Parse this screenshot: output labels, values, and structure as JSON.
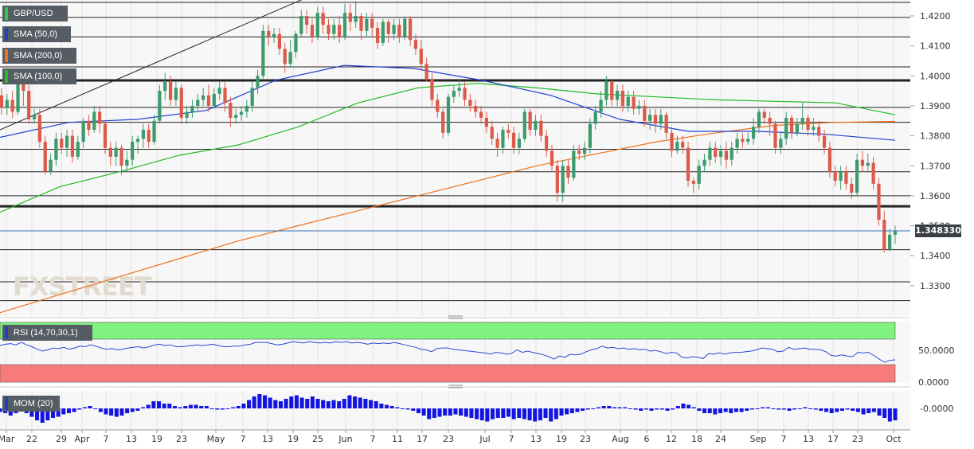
{
  "instrument": "GBP/USD",
  "indicators": {
    "sma50": {
      "label": "SMA (50,0)",
      "color": "#1f3fd0"
    },
    "sma200": {
      "label": "SMA (200,0)",
      "color": "#f0711b"
    },
    "sma100": {
      "label": "SMA (100,0)",
      "color": "#22bb22"
    },
    "rsi": {
      "label": "RSI (14,70,30,1)",
      "overbought": 70,
      "oversold": 30,
      "ticks": [
        "50.0000",
        "0.0000"
      ]
    },
    "mom": {
      "label": "MOM (20)",
      "tick": "-0.0000"
    }
  },
  "watermark": "FXSTREET",
  "last_price": "1.348330",
  "chart_data": {
    "type": "candlestick",
    "ylim": [
      1.32,
      1.425
    ],
    "y_ticks": [
      "1.3300",
      "1.3400",
      "1.3500",
      "1.3600",
      "1.3700",
      "1.3800",
      "1.3900",
      "1.4000",
      "1.4100",
      "1.4200"
    ],
    "x_labels": [
      "Mar",
      "22",
      "29",
      "Apr",
      "7",
      "13",
      "19",
      "23",
      "May",
      "7",
      "13",
      "19",
      "25",
      "Jun",
      "7",
      "11",
      "17",
      "23",
      "Jul",
      "7",
      "13",
      "19",
      "23",
      "Aug",
      "6",
      "12",
      "18",
      "24",
      "Sep",
      "7",
      "13",
      "17",
      "23",
      "Oct"
    ],
    "horizontal_levels": [
      1.4245,
      1.4195,
      1.413,
      1.403,
      1.3985,
      1.3895,
      1.3845,
      1.3755,
      1.368,
      1.36,
      1.3565,
      1.342,
      1.3313,
      1.325
    ],
    "bold_levels": [
      1.3985,
      1.3565
    ],
    "trendline": {
      "from": 1.382,
      "to": 1.426
    },
    "sma200": [
      1.321,
      1.327,
      1.333,
      1.339,
      1.345,
      1.35,
      1.355,
      1.36,
      1.365,
      1.37,
      1.374,
      1.378,
      1.381,
      1.3835,
      1.3845,
      1.3848
    ],
    "sma100": [
      1.3545,
      1.363,
      1.368,
      1.3735,
      1.377,
      1.383,
      1.391,
      1.396,
      1.3975,
      1.396,
      1.394,
      1.393,
      1.392,
      1.3915,
      1.391,
      1.387
    ],
    "sma50": [
      1.3795,
      1.3845,
      1.3855,
      1.3885,
      1.3985,
      1.4035,
      1.4025,
      1.3985,
      1.3935,
      1.3855,
      1.3815,
      1.3815,
      1.3805,
      1.3785
    ],
    "candles": [
      [
        1.3935,
        1.3895,
        1.396,
        1.387
      ],
      [
        1.3895,
        1.392,
        1.394,
        1.387
      ],
      [
        1.392,
        1.388,
        1.395,
        1.386
      ],
      [
        1.388,
        1.399,
        1.401,
        1.387
      ],
      [
        1.399,
        1.395,
        1.401,
        1.39
      ],
      [
        1.395,
        1.3855,
        1.397,
        1.384
      ],
      [
        1.3855,
        1.387,
        1.389,
        1.384
      ],
      [
        1.387,
        1.378,
        1.389,
        1.376
      ],
      [
        1.378,
        1.368,
        1.38,
        1.367
      ],
      [
        1.368,
        1.372,
        1.374,
        1.367
      ],
      [
        1.372,
        1.379,
        1.381,
        1.37
      ],
      [
        1.379,
        1.376,
        1.381,
        1.374
      ],
      [
        1.376,
        1.38,
        1.382,
        1.373
      ],
      [
        1.38,
        1.373,
        1.382,
        1.371
      ],
      [
        1.373,
        1.378,
        1.38,
        1.372
      ],
      [
        1.378,
        1.385,
        1.386,
        1.376
      ],
      [
        1.385,
        1.382,
        1.387,
        1.38
      ],
      [
        1.382,
        1.388,
        1.39,
        1.381
      ],
      [
        1.388,
        1.384,
        1.39,
        1.381
      ],
      [
        1.384,
        1.376,
        1.385,
        1.374
      ],
      [
        1.376,
        1.373,
        1.378,
        1.37
      ],
      [
        1.373,
        1.376,
        1.378,
        1.37
      ],
      [
        1.376,
        1.37,
        1.377,
        1.367
      ],
      [
        1.37,
        1.372,
        1.375,
        1.368
      ],
      [
        1.372,
        1.378,
        1.38,
        1.37
      ],
      [
        1.378,
        1.379,
        1.38,
        1.374
      ],
      [
        1.379,
        1.382,
        1.384,
        1.376
      ],
      [
        1.382,
        1.378,
        1.384,
        1.376
      ],
      [
        1.378,
        1.385,
        1.387,
        1.377
      ],
      [
        1.385,
        1.395,
        1.397,
        1.384
      ],
      [
        1.395,
        1.398,
        1.401,
        1.392
      ],
      [
        1.398,
        1.392,
        1.4,
        1.39
      ],
      [
        1.392,
        1.396,
        1.398,
        1.39
      ],
      [
        1.396,
        1.386,
        1.397,
        1.384
      ],
      [
        1.386,
        1.388,
        1.39,
        1.384
      ],
      [
        1.388,
        1.39,
        1.392,
        1.386
      ],
      [
        1.39,
        1.392,
        1.394,
        1.388
      ],
      [
        1.392,
        1.3935,
        1.396,
        1.39
      ],
      [
        1.3935,
        1.39,
        1.397,
        1.388
      ],
      [
        1.39,
        1.394,
        1.396,
        1.389
      ],
      [
        1.394,
        1.396,
        1.398,
        1.392
      ],
      [
        1.396,
        1.391,
        1.398,
        1.388
      ],
      [
        1.391,
        1.386,
        1.393,
        1.383
      ],
      [
        1.386,
        1.387,
        1.389,
        1.384
      ],
      [
        1.387,
        1.388,
        1.39,
        1.385
      ],
      [
        1.388,
        1.39,
        1.392,
        1.386
      ],
      [
        1.39,
        1.396,
        1.398,
        1.388
      ],
      [
        1.396,
        1.4,
        1.402,
        1.394
      ],
      [
        1.4,
        1.415,
        1.417,
        1.399
      ],
      [
        1.415,
        1.413,
        1.417,
        1.41
      ],
      [
        1.413,
        1.414,
        1.416,
        1.411
      ],
      [
        1.414,
        1.409,
        1.416,
        1.407
      ],
      [
        1.409,
        1.404,
        1.411,
        1.401
      ],
      [
        1.404,
        1.408,
        1.412,
        1.403
      ],
      [
        1.408,
        1.414,
        1.415,
        1.406
      ],
      [
        1.414,
        1.42,
        1.422,
        1.413
      ],
      [
        1.42,
        1.417,
        1.422,
        1.414
      ],
      [
        1.417,
        1.413,
        1.419,
        1.411
      ],
      [
        1.413,
        1.421,
        1.423,
        1.412
      ],
      [
        1.421,
        1.417,
        1.423,
        1.414
      ],
      [
        1.417,
        1.414,
        1.419,
        1.412
      ],
      [
        1.414,
        1.417,
        1.419,
        1.412
      ],
      [
        1.417,
        1.413,
        1.42,
        1.411
      ],
      [
        1.413,
        1.421,
        1.424,
        1.412
      ],
      [
        1.421,
        1.418,
        1.424,
        1.415
      ],
      [
        1.418,
        1.42,
        1.425,
        1.416
      ],
      [
        1.42,
        1.415,
        1.421,
        1.412
      ],
      [
        1.415,
        1.419,
        1.421,
        1.413
      ],
      [
        1.419,
        1.416,
        1.421,
        1.413
      ],
      [
        1.416,
        1.411,
        1.418,
        1.409
      ],
      [
        1.411,
        1.418,
        1.419,
        1.41
      ],
      [
        1.418,
        1.414,
        1.419,
        1.411
      ],
      [
        1.414,
        1.417,
        1.419,
        1.412
      ],
      [
        1.417,
        1.413,
        1.419,
        1.411
      ],
      [
        1.413,
        1.419,
        1.42,
        1.412
      ],
      [
        1.419,
        1.412,
        1.42,
        1.41
      ],
      [
        1.412,
        1.409,
        1.414,
        1.407
      ],
      [
        1.409,
        1.404,
        1.412,
        1.402
      ],
      [
        1.404,
        1.399,
        1.406,
        1.398
      ],
      [
        1.399,
        1.392,
        1.401,
        1.39
      ],
      [
        1.392,
        1.388,
        1.394,
        1.386
      ],
      [
        1.388,
        1.381,
        1.389,
        1.379
      ],
      [
        1.381,
        1.393,
        1.394,
        1.38
      ],
      [
        1.393,
        1.395,
        1.397,
        1.391
      ],
      [
        1.395,
        1.396,
        1.399,
        1.393
      ],
      [
        1.396,
        1.392,
        1.398,
        1.39
      ],
      [
        1.392,
        1.39,
        1.394,
        1.388
      ],
      [
        1.39,
        1.388,
        1.392,
        1.386
      ],
      [
        1.388,
        1.386,
        1.39,
        1.384
      ],
      [
        1.386,
        1.383,
        1.388,
        1.381
      ],
      [
        1.383,
        1.379,
        1.385,
        1.377
      ],
      [
        1.379,
        1.376,
        1.381,
        1.373
      ],
      [
        1.376,
        1.382,
        1.383,
        1.374
      ],
      [
        1.382,
        1.381,
        1.384,
        1.379
      ],
      [
        1.381,
        1.376,
        1.383,
        1.374
      ],
      [
        1.376,
        1.379,
        1.381,
        1.374
      ],
      [
        1.379,
        1.388,
        1.389,
        1.378
      ],
      [
        1.388,
        1.382,
        1.389,
        1.38
      ],
      [
        1.382,
        1.385,
        1.387,
        1.38
      ],
      [
        1.385,
        1.38,
        1.387,
        1.378
      ],
      [
        1.38,
        1.375,
        1.382,
        1.373
      ],
      [
        1.375,
        1.37,
        1.377,
        1.368
      ],
      [
        1.37,
        1.361,
        1.372,
        1.358
      ],
      [
        1.361,
        1.37,
        1.372,
        1.358
      ],
      [
        1.37,
        1.366,
        1.372,
        1.364
      ],
      [
        1.366,
        1.375,
        1.377,
        1.365
      ],
      [
        1.375,
        1.374,
        1.377,
        1.372
      ],
      [
        1.374,
        1.376,
        1.378,
        1.372
      ],
      [
        1.376,
        1.384,
        1.386,
        1.374
      ],
      [
        1.384,
        1.388,
        1.39,
        1.382
      ],
      [
        1.388,
        1.392,
        1.395,
        1.386
      ],
      [
        1.392,
        1.398,
        1.4,
        1.39
      ],
      [
        1.398,
        1.392,
        1.399,
        1.39
      ],
      [
        1.392,
        1.395,
        1.397,
        1.39
      ],
      [
        1.395,
        1.39,
        1.397,
        1.388
      ],
      [
        1.39,
        1.393,
        1.395,
        1.388
      ],
      [
        1.393,
        1.389,
        1.395,
        1.387
      ],
      [
        1.389,
        1.39,
        1.392,
        1.387
      ],
      [
        1.39,
        1.385,
        1.392,
        1.383
      ],
      [
        1.385,
        1.387,
        1.389,
        1.382
      ],
      [
        1.387,
        1.384,
        1.389,
        1.381
      ],
      [
        1.384,
        1.387,
        1.389,
        1.382
      ],
      [
        1.387,
        1.381,
        1.388,
        1.379
      ],
      [
        1.381,
        1.375,
        1.383,
        1.373
      ],
      [
        1.375,
        1.378,
        1.38,
        1.374
      ],
      [
        1.378,
        1.376,
        1.38,
        1.374
      ],
      [
        1.376,
        1.365,
        1.378,
        1.363
      ],
      [
        1.365,
        1.364,
        1.366,
        1.361
      ],
      [
        1.364,
        1.37,
        1.372,
        1.362
      ],
      [
        1.37,
        1.372,
        1.374,
        1.368
      ],
      [
        1.372,
        1.376,
        1.378,
        1.37
      ],
      [
        1.376,
        1.373,
        1.378,
        1.371
      ],
      [
        1.373,
        1.375,
        1.377,
        1.37
      ],
      [
        1.375,
        1.372,
        1.378,
        1.369
      ],
      [
        1.372,
        1.376,
        1.378,
        1.37
      ],
      [
        1.376,
        1.379,
        1.381,
        1.374
      ],
      [
        1.379,
        1.378,
        1.381,
        1.376
      ],
      [
        1.378,
        1.379,
        1.381,
        1.377
      ],
      [
        1.379,
        1.383,
        1.386,
        1.377
      ],
      [
        1.383,
        1.388,
        1.389,
        1.381
      ],
      [
        1.388,
        1.386,
        1.389,
        1.384
      ],
      [
        1.386,
        1.384,
        1.388,
        1.38
      ],
      [
        1.384,
        1.376,
        1.385,
        1.374
      ],
      [
        1.376,
        1.379,
        1.381,
        1.374
      ],
      [
        1.379,
        1.386,
        1.388,
        1.377
      ],
      [
        1.386,
        1.381,
        1.387,
        1.379
      ],
      [
        1.381,
        1.384,
        1.386,
        1.38
      ],
      [
        1.384,
        1.386,
        1.391,
        1.382
      ],
      [
        1.386,
        1.382,
        1.387,
        1.38
      ],
      [
        1.382,
        1.383,
        1.386,
        1.38
      ],
      [
        1.383,
        1.38,
        1.385,
        1.378
      ],
      [
        1.38,
        1.376,
        1.382,
        1.374
      ],
      [
        1.376,
        1.368,
        1.378,
        1.366
      ],
      [
        1.368,
        1.365,
        1.37,
        1.363
      ],
      [
        1.365,
        1.368,
        1.37,
        1.362
      ],
      [
        1.368,
        1.364,
        1.37,
        1.362
      ],
      [
        1.364,
        1.361,
        1.366,
        1.359
      ],
      [
        1.361,
        1.372,
        1.374,
        1.36
      ],
      [
        1.372,
        1.37,
        1.375,
        1.368
      ],
      [
        1.37,
        1.371,
        1.374,
        1.368
      ],
      [
        1.371,
        1.364,
        1.373,
        1.362
      ],
      [
        1.364,
        1.352,
        1.366,
        1.35
      ],
      [
        1.352,
        1.342,
        1.355,
        1.341
      ],
      [
        1.342,
        1.347,
        1.349,
        1.3415
      ],
      [
        1.347,
        1.3483,
        1.35,
        1.344
      ]
    ],
    "rsi_series": [
      59,
      61,
      62,
      60,
      64,
      60,
      57,
      53,
      50,
      52,
      55,
      54,
      56,
      53,
      55,
      58,
      57,
      60,
      58,
      55,
      53,
      54,
      52,
      53,
      55,
      56,
      57,
      55,
      57,
      60,
      61,
      59,
      60,
      57,
      57,
      58,
      59,
      60,
      59,
      60,
      61,
      59,
      57,
      57,
      58,
      58,
      60,
      61,
      64,
      64,
      64,
      62,
      60,
      61,
      63,
      65,
      64,
      63,
      65,
      64,
      63,
      64,
      63,
      65,
      64,
      65,
      63,
      64,
      63,
      61,
      63,
      62,
      63,
      62,
      64,
      62,
      60,
      58,
      56,
      53,
      52,
      49,
      54,
      55,
      55,
      53,
      52,
      51,
      50,
      49,
      48,
      47,
      45,
      48,
      47,
      45,
      46,
      52,
      48,
      50,
      48,
      46,
      44,
      41,
      37,
      42,
      40,
      45,
      44,
      45,
      49,
      52,
      54,
      58,
      55,
      56,
      54,
      55,
      53,
      54,
      52,
      53,
      50,
      51,
      49,
      46,
      48,
      47,
      40,
      39,
      41,
      40,
      38,
      46,
      45,
      47,
      45,
      47,
      48,
      48,
      49,
      50,
      52,
      55,
      54,
      53,
      49,
      50,
      56,
      53,
      54,
      55,
      53,
      53,
      52,
      49,
      43,
      42,
      44,
      42,
      41,
      48,
      47,
      48,
      43,
      37,
      32,
      35,
      36
    ],
    "mom_series": [
      -0.003,
      -0.004,
      -0.006,
      -0.004,
      -0.002,
      -0.004,
      -0.007,
      -0.01,
      -0.012,
      -0.01,
      -0.008,
      -0.007,
      -0.005,
      -0.004,
      -0.003,
      -0.001,
      0.001,
      0.002,
      0.0,
      -0.003,
      -0.005,
      -0.006,
      -0.007,
      -0.006,
      -0.004,
      -0.003,
      -0.002,
      0.001,
      0.003,
      0.006,
      0.006,
      0.004,
      0.004,
      0.002,
      0.001,
      0.002,
      0.003,
      0.003,
      0.002,
      0.002,
      0.0,
      -0.001,
      -0.001,
      0.0,
      0.001,
      0.002,
      0.004,
      0.007,
      0.01,
      0.012,
      0.011,
      0.009,
      0.007,
      0.006,
      0.008,
      0.01,
      0.011,
      0.009,
      0.008,
      0.01,
      0.008,
      0.007,
      0.006,
      0.007,
      0.006,
      0.008,
      0.011,
      0.01,
      0.009,
      0.008,
      0.007,
      0.006,
      0.004,
      0.003,
      0.002,
      0.001,
      0.0,
      -0.001,
      -0.002,
      -0.004,
      -0.006,
      -0.009,
      -0.008,
      -0.007,
      -0.006,
      -0.006,
      -0.005,
      -0.006,
      -0.007,
      -0.008,
      -0.009,
      -0.01,
      -0.011,
      -0.009,
      -0.008,
      -0.008,
      -0.007,
      -0.009,
      -0.008,
      -0.009,
      -0.01,
      -0.011,
      -0.01,
      -0.008,
      -0.011,
      -0.009,
      -0.006,
      -0.005,
      -0.004,
      -0.003,
      -0.002,
      -0.001,
      0.0,
      0.001,
      0.002,
      0.002,
      0.001,
      0.001,
      0.001,
      0.0,
      -0.001,
      -0.002,
      -0.001,
      -0.002,
      -0.001,
      -0.001,
      -0.002,
      -0.001,
      0.002,
      0.004,
      0.003,
      0.001,
      -0.002,
      -0.004,
      -0.004,
      -0.005,
      -0.004,
      -0.003,
      -0.004,
      -0.003,
      -0.003,
      -0.002,
      -0.001,
      0.0,
      0.001,
      0.001,
      0.0,
      -0.001,
      -0.001,
      -0.002,
      -0.001,
      0.0,
      0.001,
      0.0,
      -0.001,
      -0.002,
      -0.003,
      -0.004,
      -0.003,
      -0.002,
      -0.001,
      -0.002,
      -0.003,
      -0.005,
      -0.004,
      -0.003,
      -0.006,
      -0.008,
      -0.011,
      -0.01
    ]
  }
}
